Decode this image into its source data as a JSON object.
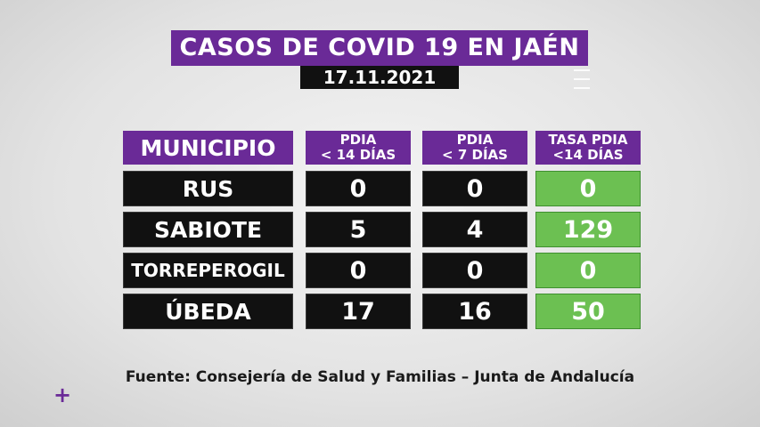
{
  "header": {
    "title": "CASOS DE COVID 19 EN JAÉN",
    "date": "17.11.2021"
  },
  "chart_data": {
    "type": "table",
    "columns": [
      {
        "label": "MUNICIPIO"
      },
      {
        "line1": "PDIA",
        "line2": "< 14 DÍAS"
      },
      {
        "line1": "PDIA",
        "line2": "< 7 DÍAS"
      },
      {
        "line1": "TASA PDIA",
        "line2": "<14 DÍAS"
      }
    ],
    "rows": [
      {
        "municipio": "RUS",
        "pdia_14": "0",
        "pdia_7": "0",
        "tasa_14": "0"
      },
      {
        "municipio": "SABIOTE",
        "pdia_14": "5",
        "pdia_7": "4",
        "tasa_14": "129"
      },
      {
        "municipio": "TORREPEROGIL",
        "pdia_14": "0",
        "pdia_7": "0",
        "tasa_14": "0"
      },
      {
        "municipio": "ÚBEDA",
        "pdia_14": "17",
        "pdia_7": "16",
        "tasa_14": "50"
      }
    ]
  },
  "footer": {
    "source": "Fuente: Consejería de Salud y Familias – Junta de Andalucía",
    "plus_icon": "plus-icon"
  },
  "colors": {
    "purple": "#6a2a97",
    "dark": "#111111",
    "green": "#6cc052"
  }
}
